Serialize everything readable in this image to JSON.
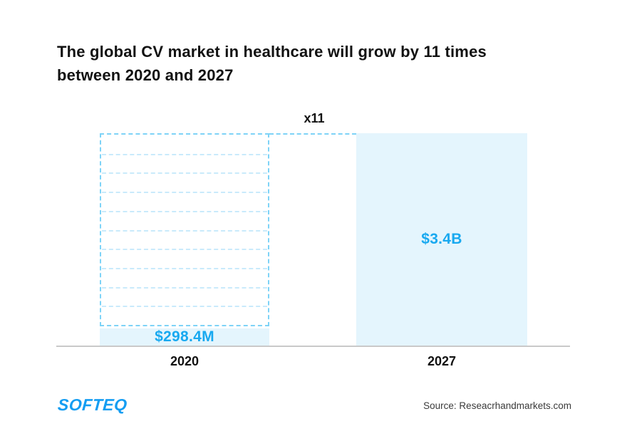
{
  "header": {
    "title_line1": "The global CV market in healthcare will grow by 11 times",
    "title_line2": "between 2020 and 2027"
  },
  "chart": {
    "multiplier_label": "x11",
    "bars": [
      {
        "category": "2020",
        "value_label": "$298.4M"
      },
      {
        "category": "2027",
        "value_label": "$3.4B"
      }
    ]
  },
  "chart_data": {
    "type": "bar",
    "title": "The global CV market in healthcare will grow by 11 times between 2020 and 2027",
    "categories": [
      "2020",
      "2027"
    ],
    "values": [
      298.4,
      3400
    ],
    "unit": "USD millions",
    "value_labels": [
      "$298.4M",
      "$3.4B"
    ],
    "annotations": [
      "x11"
    ],
    "ghost_projection": {
      "on_category": "2020",
      "segments": 11,
      "meaning": "dashed outline over the 2020 bar showing 11 stacked units of $298.4M reaching the 2027 height"
    },
    "legend": false,
    "gridlines": false,
    "xlabel": "",
    "ylabel": "",
    "colors": {
      "bar_fill": "#E4F5FD",
      "ghost_border": "#7ED3F7",
      "ghost_inner_line": "#C9EAFB",
      "value_text": "#18A9F0",
      "axis_line": "#C9C9C9",
      "label_text": "#121212",
      "brand_blue": "#149DF2"
    }
  },
  "footer": {
    "logo_text": "SOFTEQ",
    "source": "Source: Reseacrhandmarkets.com"
  }
}
